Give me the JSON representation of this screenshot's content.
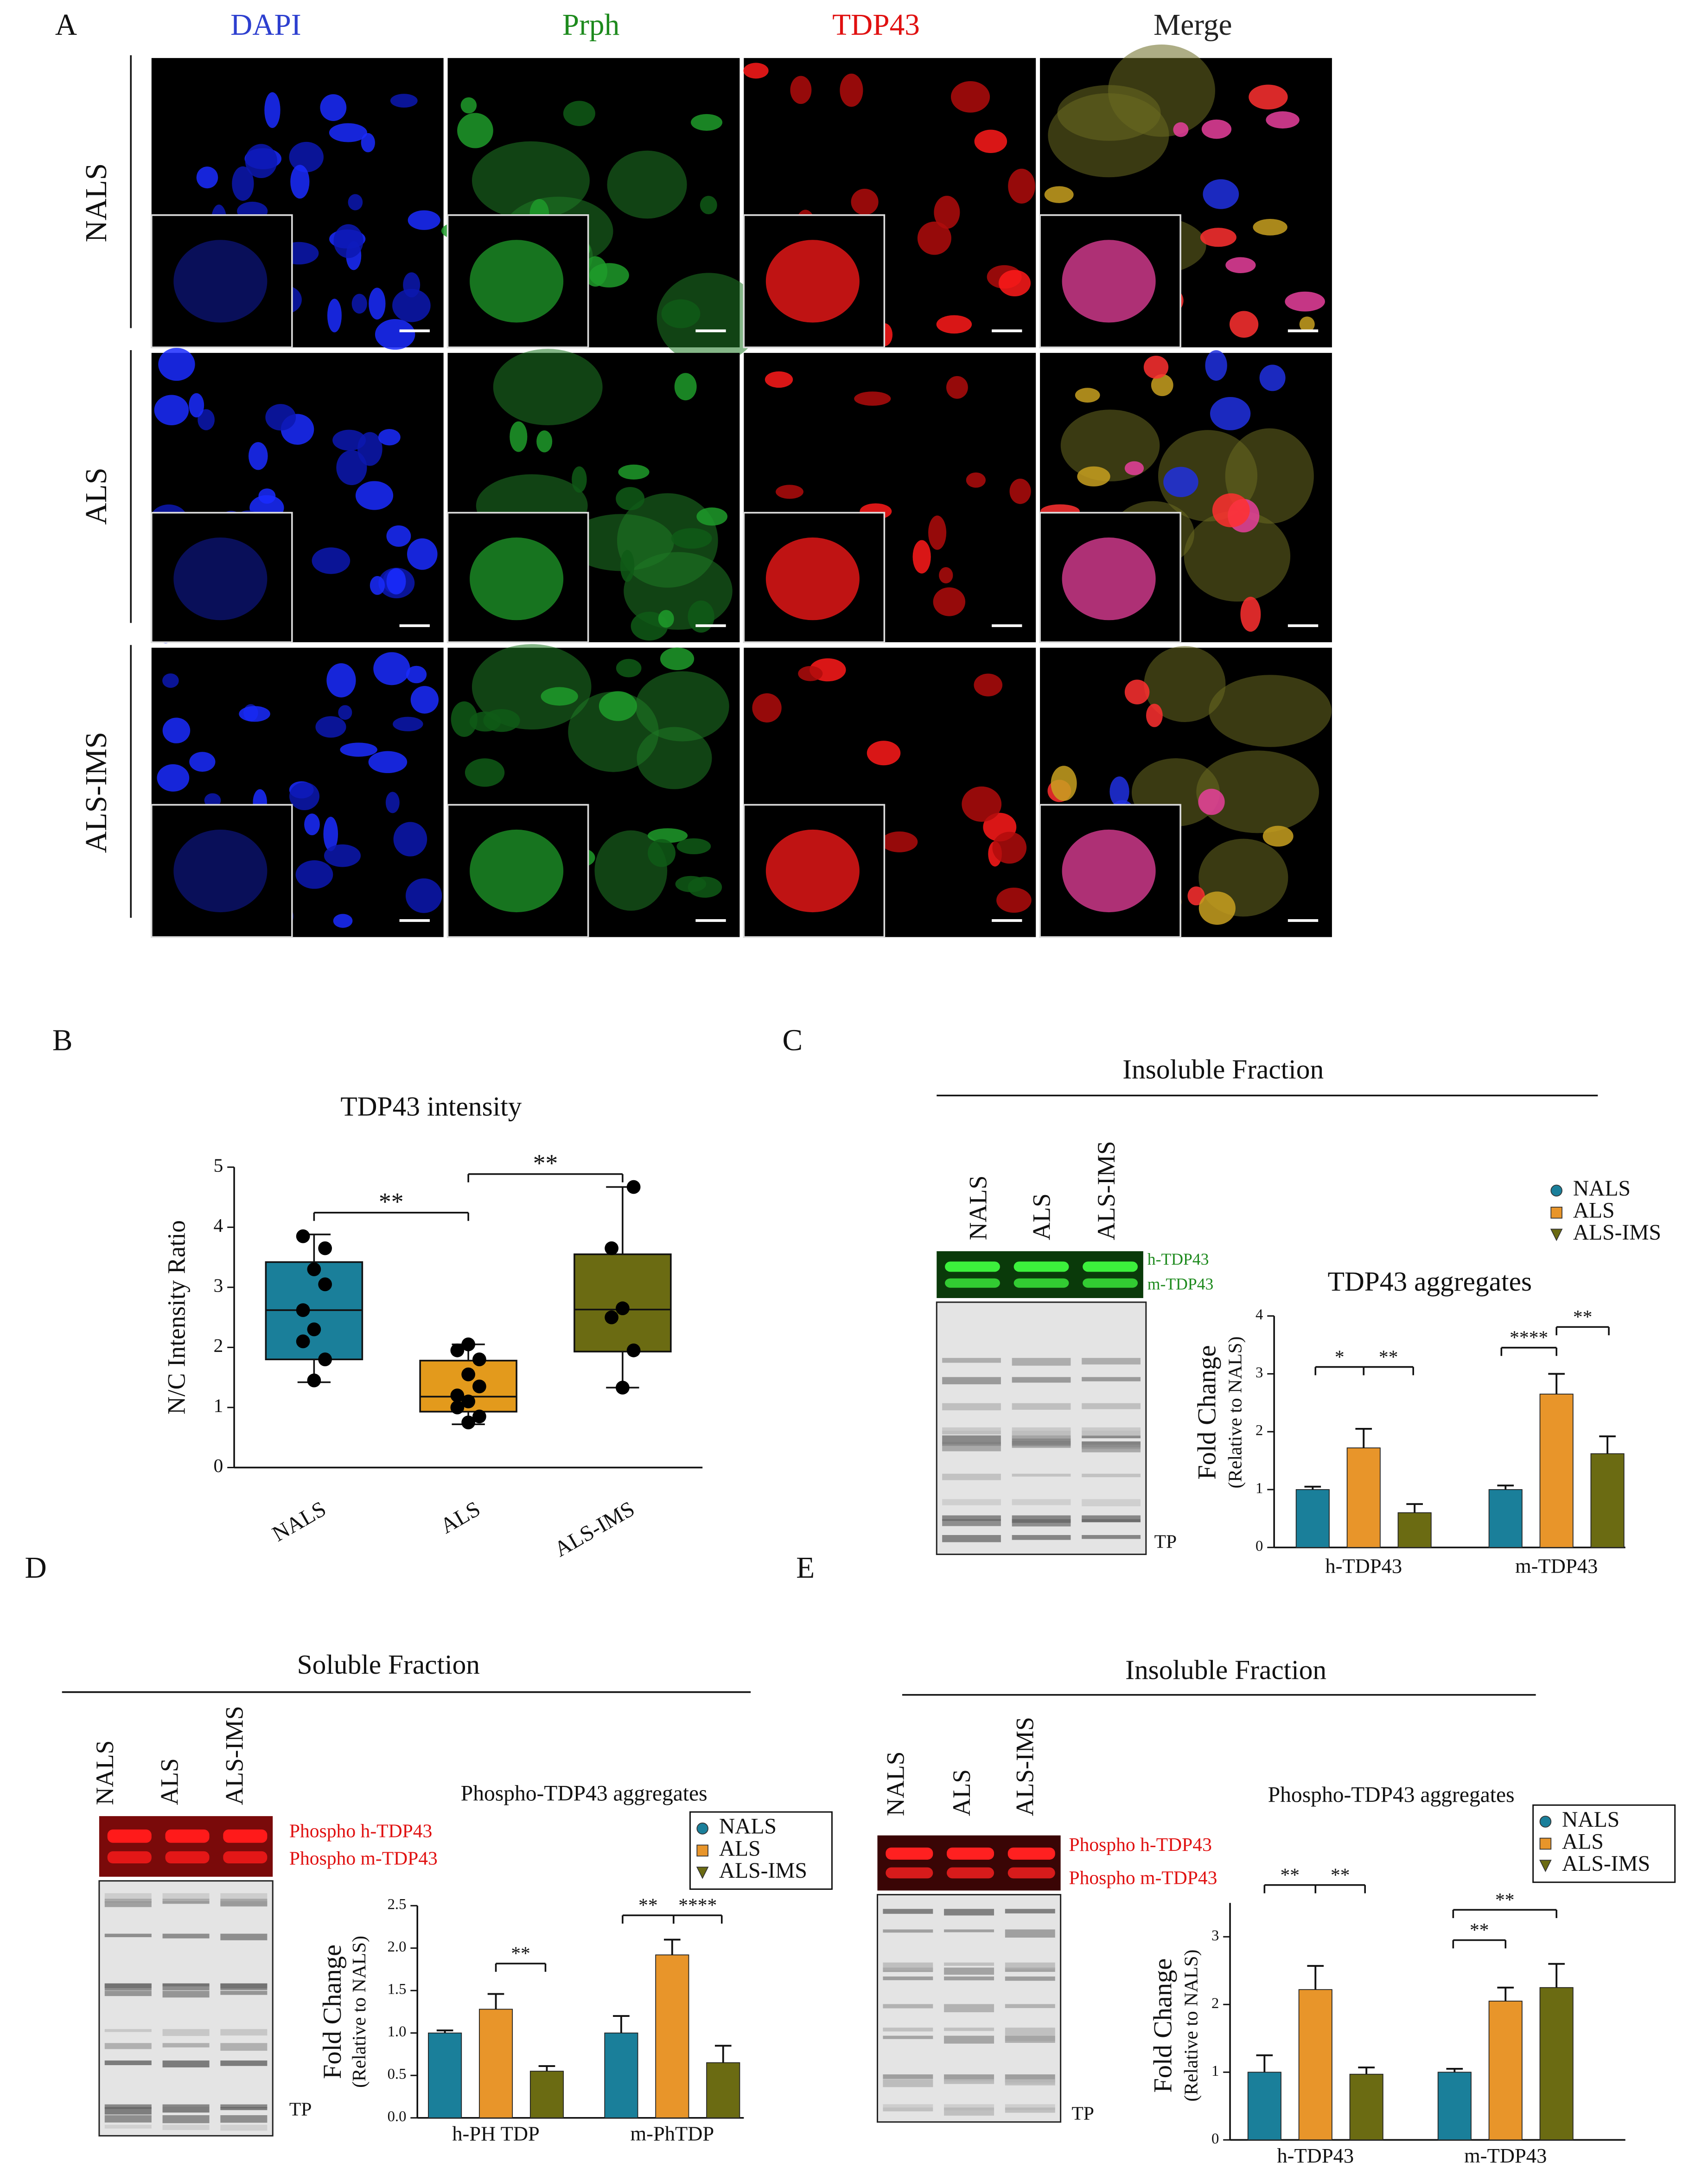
{
  "panel_labels": [
    "A",
    "B",
    "C",
    "D",
    "E"
  ],
  "panel_a": {
    "columns": [
      "DAPI",
      "Prph",
      "TDP43",
      "Merge"
    ],
    "rows": [
      "NALS",
      "ALS",
      "ALS-IMS"
    ]
  },
  "blots": [
    {
      "title": "Insoluble Fraction",
      "lanes": [
        "NALS",
        "ALS",
        "ALS-IMS"
      ],
      "bands": [
        "h-TDP43",
        "m-TDP43"
      ],
      "loading": "TP"
    },
    {
      "title": "Soluble Fraction",
      "lanes": [
        "NALS",
        "ALS",
        "ALS-IMS"
      ],
      "bands": [
        "Phospho h-TDP43",
        "Phospho m-TDP43"
      ],
      "loading": "TP"
    },
    {
      "title": "Insoluble Fraction",
      "lanes": [
        "NALS",
        "ALS",
        "ALS-IMS"
      ],
      "bands": [
        "Phospho h-TDP43",
        "Phospho m-TDP43"
      ],
      "loading": "TP"
    }
  ],
  "chart_data": [
    {
      "type": "box",
      "title": "TDP43 intensity",
      "y_label": "N/C Intensity Ratio",
      "categories": [
        "NALS",
        "ALS",
        "ALS-IMS"
      ],
      "colors": [
        "#1a7f9a",
        "#e39a1c",
        "#6b6b12"
      ],
      "boxes": [
        {
          "min": 1.42,
          "q1": 1.8,
          "median": 2.62,
          "q3": 3.42,
          "max": 3.88,
          "points": [
            1.45,
            1.8,
            2.1,
            2.3,
            2.62,
            3.05,
            3.3,
            3.65,
            3.85
          ]
        },
        {
          "min": 0.72,
          "q1": 0.93,
          "median": 1.18,
          "q3": 1.78,
          "max": 2.05,
          "points": [
            0.75,
            0.85,
            1.0,
            1.1,
            1.2,
            1.35,
            1.55,
            1.8,
            1.95,
            2.05
          ]
        },
        {
          "min": 1.33,
          "q1": 1.93,
          "median": 2.63,
          "q3": 3.55,
          "max": 4.67,
          "points": [
            1.33,
            1.95,
            2.5,
            2.65,
            3.65,
            4.67
          ]
        }
      ],
      "ylim": [
        0,
        5
      ],
      "yticks": [
        0,
        1,
        2,
        3,
        4,
        5
      ],
      "annotations": [
        "**",
        "**"
      ]
    },
    {
      "type": "bar",
      "title": "TDP43 aggregates",
      "y_label": "Fold Change",
      "y_sublabel": "(Relative to NALS)",
      "categories": [
        "h-TDP43",
        "m-TDP43"
      ],
      "series": [
        {
          "name": "NALS",
          "color": "#1a7f9a",
          "marker": "circle",
          "values": [
            1.0,
            1.0
          ],
          "errors": [
            0.05,
            0.07
          ]
        },
        {
          "name": "ALS",
          "color": "#e8952a",
          "marker": "square",
          "values": [
            1.72,
            2.65
          ],
          "errors": [
            0.33,
            0.35
          ]
        },
        {
          "name": "ALS-IMS",
          "color": "#6b6b12",
          "marker": "triangle",
          "values": [
            0.6,
            1.62
          ],
          "errors": [
            0.15,
            0.3
          ]
        }
      ],
      "ylim": [
        0,
        4
      ],
      "yticks": [
        0,
        1,
        2,
        3,
        4
      ],
      "legend": "upper right",
      "legend_frame": false,
      "annotations": [
        "*",
        "**",
        "****",
        "**"
      ]
    },
    {
      "type": "bar",
      "title": "Phospho-TDP43 aggregates",
      "y_label": "Fold Change",
      "y_sublabel": "(Relative to NALS)",
      "categories": [
        "h-PH TDP",
        "m-PhTDP"
      ],
      "series": [
        {
          "name": "NALS",
          "color": "#1a7f9a",
          "marker": "circle",
          "values": [
            1.0,
            1.0
          ],
          "errors": [
            0.03,
            0.2
          ]
        },
        {
          "name": "ALS",
          "color": "#e8952a",
          "marker": "square",
          "values": [
            1.28,
            1.92
          ],
          "errors": [
            0.18,
            0.18
          ]
        },
        {
          "name": "ALS-IMS",
          "color": "#6b6b12",
          "marker": "triangle",
          "values": [
            0.55,
            0.65
          ],
          "errors": [
            0.06,
            0.2
          ]
        }
      ],
      "ylim": [
        0,
        2.5
      ],
      "yticks": [
        {
          "value": 0,
          "label": "0.0"
        },
        0.5,
        {
          "value": 1,
          "label": "1.0"
        },
        1.5,
        {
          "value": 2,
          "label": "2.0"
        },
        2.5
      ],
      "legend": "upper right",
      "legend_frame": true,
      "annotations": [
        "**",
        "**",
        "****"
      ]
    },
    {
      "type": "bar",
      "title": "Phospho-TDP43 aggregates",
      "y_label": "Fold Change",
      "y_sublabel": "(Relative to NALS)",
      "categories": [
        "h-TDP43",
        "m-TDP43"
      ],
      "series": [
        {
          "name": "NALS",
          "color": "#1a7f9a",
          "marker": "circle",
          "values": [
            1.0,
            1.0
          ],
          "errors": [
            0.25,
            0.05
          ]
        },
        {
          "name": "ALS",
          "color": "#e8952a",
          "marker": "square",
          "values": [
            2.22,
            2.05
          ],
          "errors": [
            0.35,
            0.2
          ]
        },
        {
          "name": "ALS-IMS",
          "color": "#6b6b12",
          "marker": "triangle",
          "values": [
            0.97,
            2.25
          ],
          "errors": [
            0.1,
            0.35
          ]
        }
      ],
      "ylim": [
        0,
        3.5
      ],
      "yticks": [
        0,
        1,
        2,
        3
      ],
      "legend": "upper right",
      "legend_frame": true,
      "annotations": [
        "**",
        "**",
        "**",
        "**"
      ]
    }
  ]
}
